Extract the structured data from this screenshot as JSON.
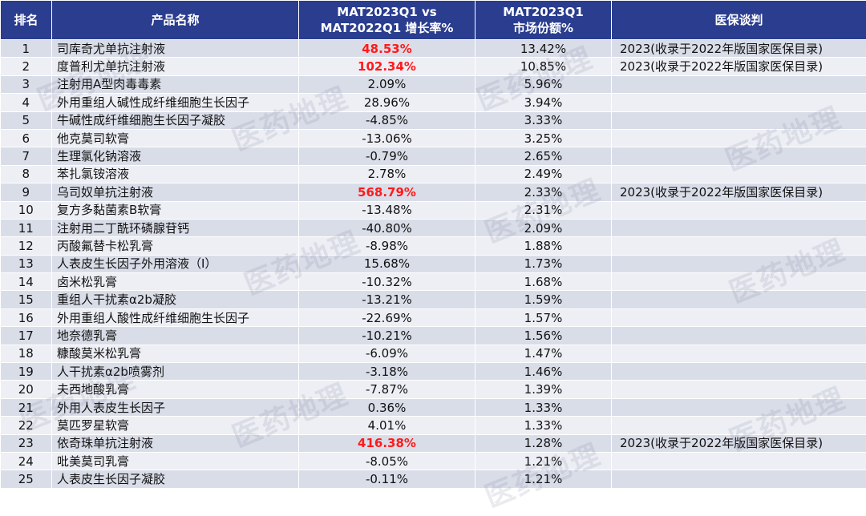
{
  "headers": [
    "排名",
    "产品名称",
    "MAT2023Q1 vs MAT2022Q1 增长率%",
    "MAT2023Q1 市场份额%",
    "医保谈判"
  ],
  "header_lines": {
    "growth": [
      "MAT2023Q1 vs",
      "MAT2022Q1 增长率%"
    ],
    "share": [
      "MAT2023Q1",
      "市场份额%"
    ]
  },
  "watermark": "医药地理",
  "colors": {
    "header_bg": "#2a3d8f",
    "row_odd": "#d9dde8",
    "row_even": "#edeff5",
    "highlight": "#ff1a1a"
  },
  "rows": [
    {
      "rank": "1",
      "name": "司库奇尤单抗注射液",
      "growth": "48.53%",
      "share": "13.42%",
      "nego": "2023(收录于2022年版国家医保目录)",
      "hl": true
    },
    {
      "rank": "2",
      "name": "度普利尤单抗注射液",
      "growth": "102.34%",
      "share": "10.85%",
      "nego": "2023(收录于2022年版国家医保目录)",
      "hl": true
    },
    {
      "rank": "3",
      "name": "注射用A型肉毒毒素",
      "growth": "2.09%",
      "share": "5.96%",
      "nego": "",
      "hl": false
    },
    {
      "rank": "4",
      "name": "外用重组人碱性成纤维细胞生长因子",
      "growth": "28.96%",
      "share": "3.94%",
      "nego": "",
      "hl": false
    },
    {
      "rank": "5",
      "name": "牛碱性成纤维细胞生长因子凝胶",
      "growth": "-4.85%",
      "share": "3.33%",
      "nego": "",
      "hl": false
    },
    {
      "rank": "6",
      "name": "他克莫司软膏",
      "growth": "-13.06%",
      "share": "3.25%",
      "nego": "",
      "hl": false
    },
    {
      "rank": "7",
      "name": "生理氯化钠溶液",
      "growth": "-0.79%",
      "share": "2.65%",
      "nego": "",
      "hl": false
    },
    {
      "rank": "8",
      "name": "苯扎氯铵溶液",
      "growth": "2.78%",
      "share": "2.49%",
      "nego": "",
      "hl": false
    },
    {
      "rank": "9",
      "name": "乌司奴单抗注射液",
      "growth": "568.79%",
      "share": "2.33%",
      "nego": "2023(收录于2022年版国家医保目录)",
      "hl": true
    },
    {
      "rank": "10",
      "name": "复方多黏菌素B软膏",
      "growth": "-13.48%",
      "share": "2.31%",
      "nego": "",
      "hl": false
    },
    {
      "rank": "11",
      "name": "注射用二丁酰环磷腺苷钙",
      "growth": "-40.80%",
      "share": "2.09%",
      "nego": "",
      "hl": false
    },
    {
      "rank": "12",
      "name": "丙酸氟替卡松乳膏",
      "growth": "-8.98%",
      "share": "1.88%",
      "nego": "",
      "hl": false
    },
    {
      "rank": "13",
      "name": "人表皮生长因子外用溶液（Ⅰ）",
      "growth": "15.68%",
      "share": "1.73%",
      "nego": "",
      "hl": false
    },
    {
      "rank": "14",
      "name": "卤米松乳膏",
      "growth": "-10.32%",
      "share": "1.68%",
      "nego": "",
      "hl": false
    },
    {
      "rank": "15",
      "name": "重组人干扰素α2b凝胶",
      "growth": "-13.21%",
      "share": "1.59%",
      "nego": "",
      "hl": false
    },
    {
      "rank": "16",
      "name": "外用重组人酸性成纤维细胞生长因子",
      "growth": "-22.69%",
      "share": "1.57%",
      "nego": "",
      "hl": false
    },
    {
      "rank": "17",
      "name": "地奈德乳膏",
      "growth": "-10.21%",
      "share": "1.56%",
      "nego": "",
      "hl": false
    },
    {
      "rank": "18",
      "name": "糠酸莫米松乳膏",
      "growth": "-6.09%",
      "share": "1.47%",
      "nego": "",
      "hl": false
    },
    {
      "rank": "19",
      "name": "人干扰素α2b喷雾剂",
      "growth": "-3.18%",
      "share": "1.46%",
      "nego": "",
      "hl": false
    },
    {
      "rank": "20",
      "name": "夫西地酸乳膏",
      "growth": "-7.87%",
      "share": "1.39%",
      "nego": "",
      "hl": false
    },
    {
      "rank": "21",
      "name": "外用人表皮生长因子",
      "growth": "0.36%",
      "share": "1.33%",
      "nego": "",
      "hl": false
    },
    {
      "rank": "22",
      "name": "莫匹罗星软膏",
      "growth": "4.01%",
      "share": "1.33%",
      "nego": "",
      "hl": false
    },
    {
      "rank": "23",
      "name": "依奇珠单抗注射液",
      "growth": "416.38%",
      "share": "1.28%",
      "nego": "2023(收录于2022年版国家医保目录)",
      "hl": true
    },
    {
      "rank": "24",
      "name": "吡美莫司乳膏",
      "growth": "-8.05%",
      "share": "1.21%",
      "nego": "",
      "hl": false
    },
    {
      "rank": "25",
      "name": "人表皮生长因子凝胶",
      "growth": "-0.11%",
      "share": "1.21%",
      "nego": "",
      "hl": false
    }
  ]
}
